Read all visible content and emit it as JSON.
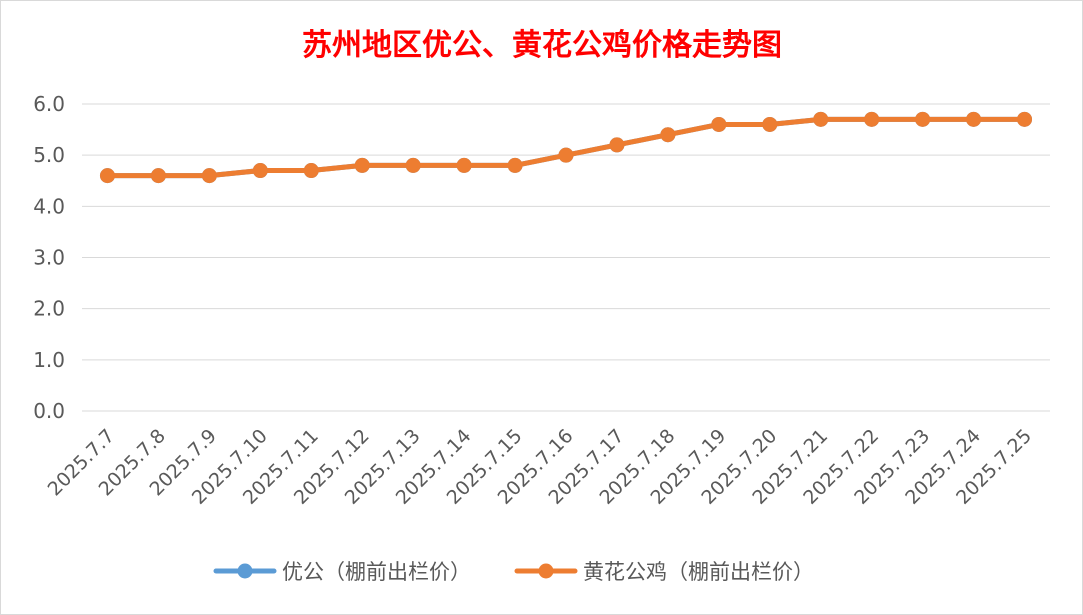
{
  "chart_data": {
    "type": "line",
    "title": "苏州地区优公、黄花公鸡价格走势图",
    "xlabel": "",
    "ylabel": "",
    "ylim": [
      0,
      6
    ],
    "yticks": [
      "0.0",
      "1.0",
      "2.0",
      "3.0",
      "4.0",
      "5.0",
      "6.0"
    ],
    "grid": true,
    "legend_position": "bottom",
    "categories": [
      "2025.7.7",
      "2025.7.8",
      "2025.7.9",
      "2025.7.10",
      "2025.7.11",
      "2025.7.12",
      "2025.7.13",
      "2025.7.14",
      "2025.7.15",
      "2025.7.16",
      "2025.7.17",
      "2025.7.18",
      "2025.7.19",
      "2025.7.20",
      "2025.7.21",
      "2025.7.22",
      "2025.7.23",
      "2025.7.24",
      "2025.7.25"
    ],
    "series": [
      {
        "name": "优公（棚前出栏价）",
        "color": "#5b9bd5",
        "values": [
          4.6,
          4.6,
          4.6,
          4.7,
          4.7,
          4.8,
          4.8,
          4.8,
          4.8,
          5.0,
          5.2,
          5.4,
          5.6,
          5.6,
          5.7,
          5.7,
          5.7,
          5.7,
          5.7
        ]
      },
      {
        "name": "黄花公鸡（棚前出栏价）",
        "color": "#ed7d31",
        "values": [
          4.6,
          4.6,
          4.6,
          4.7,
          4.7,
          4.8,
          4.8,
          4.8,
          4.8,
          5.0,
          5.2,
          5.4,
          5.6,
          5.6,
          5.7,
          5.7,
          5.7,
          5.7,
          5.7
        ]
      }
    ]
  }
}
